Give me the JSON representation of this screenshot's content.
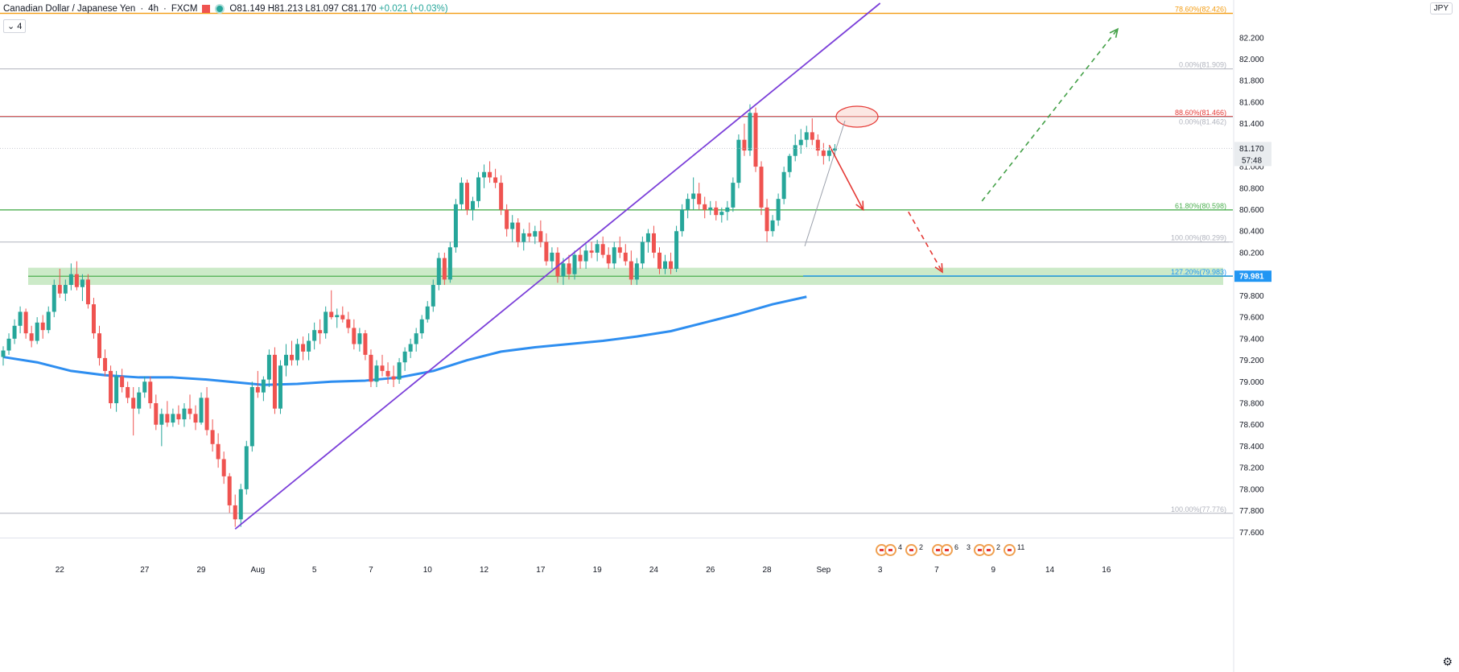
{
  "header": {
    "title": "Canadian Dollar / Japanese Yen",
    "interval": "4h",
    "source": "FXCM",
    "open": "O81.149",
    "high": "H81.213",
    "low": "L81.097",
    "close": "C81.170",
    "change": "+0.021 (+0.03%)",
    "indicator_value": "4",
    "currency": "JPY"
  },
  "events": [
    {
      "count": "4"
    },
    {
      "count": "2"
    },
    {
      "count": "6"
    },
    {
      "count": "3"
    },
    {
      "count": "2"
    },
    {
      "count": "11"
    }
  ],
  "colors": {
    "up": "#26a69a",
    "down": "#ef5350",
    "ma": "#2e8ef0",
    "trendline": "#7b3fd9",
    "resistance": "#e53935",
    "support_zone": "#b7e1b0",
    "level_green": "#4caf50",
    "fib_orange": "#f39c12",
    "fib_gray": "#b0b3bd",
    "blue_level": "#2196f3"
  },
  "chart_data": {
    "type": "candlestick",
    "title": "Canadian Dollar / Japanese Yen",
    "ylim": [
      77.55,
      82.55
    ],
    "y_ticks": [
      "82.200",
      "82.000",
      "81.800",
      "81.600",
      "81.400",
      "81.200",
      "81.000",
      "80.800",
      "80.600",
      "80.400",
      "80.200",
      "80.000",
      "79.800",
      "79.600",
      "79.400",
      "79.200",
      "79.000",
      "78.800",
      "78.600",
      "78.400",
      "78.200",
      "78.000",
      "77.800",
      "77.600"
    ],
    "x_ticks": [
      "22",
      "27",
      "29",
      "Aug",
      "5",
      "7",
      "10",
      "12",
      "17",
      "19",
      "24",
      "26",
      "28",
      "Sep",
      "3",
      "7",
      "9",
      "14",
      "16"
    ],
    "x_tick_positions": [
      4,
      10,
      14,
      18,
      22,
      26,
      30,
      34,
      38,
      42,
      46,
      50,
      54,
      58,
      62,
      66,
      70,
      74,
      78
    ],
    "last_price": "81.170",
    "countdown": "57:48",
    "candles": [
      [
        79.23,
        79.33,
        79.15,
        79.29
      ],
      [
        79.29,
        79.45,
        79.25,
        79.4
      ],
      [
        79.4,
        79.58,
        79.35,
        79.52
      ],
      [
        79.52,
        79.7,
        79.45,
        79.65
      ],
      [
        79.65,
        79.68,
        79.4,
        79.45
      ],
      [
        79.45,
        79.52,
        79.32,
        79.38
      ],
      [
        79.38,
        79.6,
        79.35,
        79.55
      ],
      [
        79.55,
        79.62,
        79.4,
        79.48
      ],
      [
        79.48,
        79.7,
        79.45,
        79.65
      ],
      [
        79.65,
        79.95,
        79.6,
        79.9
      ],
      [
        79.9,
        80.05,
        79.78,
        79.82
      ],
      [
        79.82,
        79.95,
        79.75,
        79.9
      ],
      [
        79.9,
        80.1,
        79.85,
        80.0
      ],
      [
        80.0,
        80.12,
        79.85,
        79.88
      ],
      [
        79.88,
        80.0,
        79.75,
        79.95
      ],
      [
        79.95,
        80.0,
        79.68,
        79.72
      ],
      [
        79.72,
        79.78,
        79.4,
        79.45
      ],
      [
        79.45,
        79.52,
        79.15,
        79.22
      ],
      [
        79.22,
        79.3,
        79.05,
        79.1
      ],
      [
        79.1,
        79.15,
        78.75,
        78.8
      ],
      [
        78.8,
        79.1,
        78.72,
        79.05
      ],
      [
        79.05,
        79.12,
        78.9,
        78.95
      ],
      [
        78.95,
        79.0,
        78.8,
        78.85
      ],
      [
        78.85,
        78.95,
        78.5,
        78.75
      ],
      [
        78.75,
        78.95,
        78.7,
        78.9
      ],
      [
        78.9,
        79.05,
        78.85,
        79.0
      ],
      [
        79.0,
        79.05,
        78.75,
        78.8
      ],
      [
        78.8,
        78.88,
        78.55,
        78.6
      ],
      [
        78.6,
        78.75,
        78.4,
        78.7
      ],
      [
        78.7,
        78.82,
        78.58,
        78.62
      ],
      [
        78.62,
        78.75,
        78.58,
        78.7
      ],
      [
        78.7,
        78.78,
        78.6,
        78.65
      ],
      [
        78.65,
        78.8,
        78.58,
        78.75
      ],
      [
        78.75,
        78.88,
        78.65,
        78.7
      ],
      [
        78.7,
        78.78,
        78.55,
        78.62
      ],
      [
        78.62,
        78.9,
        78.6,
        78.85
      ],
      [
        78.85,
        78.95,
        78.5,
        78.55
      ],
      [
        78.55,
        78.65,
        78.35,
        78.42
      ],
      [
        78.42,
        78.52,
        78.2,
        78.28
      ],
      [
        78.28,
        78.35,
        78.05,
        78.12
      ],
      [
        78.12,
        78.15,
        77.78,
        77.85
      ],
      [
        77.85,
        77.95,
        77.65,
        77.72
      ],
      [
        77.72,
        78.05,
        77.65,
        78.0
      ],
      [
        78.0,
        78.45,
        77.95,
        78.4
      ],
      [
        78.4,
        79.0,
        78.35,
        78.95
      ],
      [
        78.95,
        79.1,
        78.85,
        78.9
      ],
      [
        78.9,
        79.05,
        78.82,
        79.02
      ],
      [
        79.02,
        79.3,
        78.95,
        79.25
      ],
      [
        79.25,
        79.32,
        78.7,
        78.75
      ],
      [
        78.75,
        79.2,
        78.7,
        79.15
      ],
      [
        79.15,
        79.35,
        79.05,
        79.25
      ],
      [
        79.25,
        79.38,
        79.15,
        79.2
      ],
      [
        79.2,
        79.4,
        79.15,
        79.35
      ],
      [
        79.35,
        79.42,
        79.2,
        79.28
      ],
      [
        79.28,
        79.45,
        79.2,
        79.38
      ],
      [
        79.38,
        79.55,
        79.3,
        79.48
      ],
      [
        79.48,
        79.58,
        79.35,
        79.45
      ],
      [
        79.45,
        79.7,
        79.4,
        79.65
      ],
      [
        79.65,
        79.85,
        79.58,
        79.6
      ],
      [
        79.6,
        79.68,
        79.5,
        79.62
      ],
      [
        79.62,
        79.7,
        79.55,
        79.58
      ],
      [
        79.58,
        79.65,
        79.45,
        79.5
      ],
      [
        79.5,
        79.58,
        79.3,
        79.35
      ],
      [
        79.35,
        79.5,
        79.28,
        79.45
      ],
      [
        79.45,
        79.48,
        79.2,
        79.25
      ],
      [
        79.25,
        79.3,
        78.95,
        79.0
      ],
      [
        79.0,
        79.2,
        78.95,
        79.15
      ],
      [
        79.15,
        79.25,
        79.05,
        79.1
      ],
      [
        79.1,
        79.18,
        78.98,
        79.05
      ],
      [
        79.05,
        79.15,
        78.95,
        79.02
      ],
      [
        79.02,
        79.22,
        78.98,
        79.18
      ],
      [
        79.18,
        79.32,
        79.1,
        79.28
      ],
      [
        79.28,
        79.4,
        79.22,
        79.35
      ],
      [
        79.35,
        79.5,
        79.28,
        79.45
      ],
      [
        79.45,
        79.62,
        79.4,
        79.58
      ],
      [
        79.58,
        79.75,
        79.55,
        79.7
      ],
      [
        79.7,
        79.95,
        79.65,
        79.9
      ],
      [
        79.9,
        80.2,
        79.85,
        80.15
      ],
      [
        80.15,
        80.2,
        79.9,
        79.95
      ],
      [
        79.95,
        80.3,
        79.92,
        80.25
      ],
      [
        80.25,
        80.7,
        80.2,
        80.65
      ],
      [
        80.65,
        80.9,
        80.6,
        80.85
      ],
      [
        80.85,
        80.88,
        80.55,
        80.6
      ],
      [
        80.6,
        80.72,
        80.5,
        80.68
      ],
      [
        80.68,
        80.95,
        80.62,
        80.9
      ],
      [
        80.9,
        81.02,
        80.8,
        80.95
      ],
      [
        80.95,
        81.05,
        80.85,
        80.9
      ],
      [
        80.9,
        80.98,
        80.8,
        80.85
      ],
      [
        80.85,
        80.92,
        80.55,
        80.6
      ],
      [
        80.6,
        80.65,
        80.35,
        80.42
      ],
      [
        80.42,
        80.55,
        80.3,
        80.48
      ],
      [
        80.48,
        80.52,
        80.25,
        80.3
      ],
      [
        80.3,
        80.42,
        80.22,
        80.38
      ],
      [
        80.38,
        80.48,
        80.3,
        80.35
      ],
      [
        80.35,
        80.45,
        80.28,
        80.4
      ],
      [
        80.4,
        80.5,
        80.25,
        80.3
      ],
      [
        80.3,
        80.38,
        80.08,
        80.12
      ],
      [
        80.12,
        80.25,
        80.05,
        80.2
      ],
      [
        80.2,
        80.25,
        79.92,
        79.98
      ],
      [
        79.98,
        80.15,
        79.9,
        80.1
      ],
      [
        80.1,
        80.18,
        79.95,
        80.0
      ],
      [
        80.0,
        80.22,
        79.95,
        80.18
      ],
      [
        80.18,
        80.25,
        80.05,
        80.12
      ],
      [
        80.12,
        80.28,
        80.05,
        80.22
      ],
      [
        80.22,
        80.3,
        80.15,
        80.2
      ],
      [
        80.2,
        80.32,
        80.12,
        80.28
      ],
      [
        80.28,
        80.35,
        80.15,
        80.18
      ],
      [
        80.18,
        80.25,
        80.05,
        80.1
      ],
      [
        80.1,
        80.3,
        80.05,
        80.25
      ],
      [
        80.25,
        80.35,
        80.15,
        80.2
      ],
      [
        80.2,
        80.28,
        80.08,
        80.12
      ],
      [
        80.12,
        80.22,
        79.9,
        79.95
      ],
      [
        79.95,
        80.15,
        79.9,
        80.1
      ],
      [
        80.1,
        80.35,
        80.05,
        80.3
      ],
      [
        80.3,
        80.42,
        80.2,
        80.38
      ],
      [
        80.38,
        80.45,
        80.15,
        80.2
      ],
      [
        80.2,
        80.25,
        80.0,
        80.05
      ],
      [
        80.05,
        80.18,
        80.0,
        80.12
      ],
      [
        80.12,
        80.2,
        80.0,
        80.05
      ],
      [
        80.05,
        80.45,
        80.02,
        80.4
      ],
      [
        80.4,
        80.65,
        80.35,
        80.6
      ],
      [
        80.6,
        80.75,
        80.52,
        80.7
      ],
      [
        80.7,
        80.9,
        80.6,
        80.75
      ],
      [
        80.75,
        80.85,
        80.6,
        80.65
      ],
      [
        80.65,
        80.72,
        80.52,
        80.6
      ],
      [
        80.6,
        80.68,
        80.55,
        80.62
      ],
      [
        80.62,
        80.68,
        80.5,
        80.55
      ],
      [
        80.55,
        80.62,
        80.48,
        80.58
      ],
      [
        80.58,
        80.68,
        80.5,
        80.62
      ],
      [
        80.62,
        80.9,
        80.58,
        80.85
      ],
      [
        80.85,
        81.3,
        80.8,
        81.25
      ],
      [
        81.25,
        81.4,
        81.1,
        81.15
      ],
      [
        81.15,
        81.58,
        81.1,
        81.5
      ],
      [
        81.5,
        81.55,
        80.95,
        81.0
      ],
      [
        81.0,
        81.05,
        80.55,
        80.62
      ],
      [
        80.62,
        80.7,
        80.3,
        80.4
      ],
      [
        80.4,
        80.55,
        80.35,
        80.5
      ],
      [
        80.5,
        80.75,
        80.45,
        80.7
      ],
      [
        80.7,
        81.0,
        80.65,
        80.95
      ],
      [
        80.95,
        81.12,
        80.9,
        81.1
      ],
      [
        81.1,
        81.3,
        81.05,
        81.2
      ],
      [
        81.2,
        81.35,
        81.12,
        81.25
      ],
      [
        81.25,
        81.38,
        81.18,
        81.32
      ],
      [
        81.32,
        81.45,
        81.2,
        81.25
      ],
      [
        81.25,
        81.3,
        81.1,
        81.15
      ],
      [
        81.15,
        81.22,
        81.02,
        81.1
      ],
      [
        81.1,
        81.18,
        81.05,
        81.15
      ],
      [
        81.15,
        81.21,
        81.1,
        81.17
      ]
    ],
    "moving_average": [
      [
        0,
        79.23
      ],
      [
        6,
        79.18
      ],
      [
        12,
        79.1
      ],
      [
        18,
        79.06
      ],
      [
        24,
        79.04
      ],
      [
        30,
        79.04
      ],
      [
        36,
        79.02
      ],
      [
        42,
        78.99
      ],
      [
        46,
        78.97
      ],
      [
        52,
        78.98
      ],
      [
        58,
        79.0
      ],
      [
        64,
        79.01
      ],
      [
        70,
        79.04
      ],
      [
        76,
        79.1
      ],
      [
        82,
        79.2
      ],
      [
        88,
        79.28
      ],
      [
        94,
        79.32
      ],
      [
        100,
        79.35
      ],
      [
        106,
        79.38
      ],
      [
        112,
        79.42
      ],
      [
        118,
        79.47
      ],
      [
        124,
        79.55
      ],
      [
        130,
        79.63
      ],
      [
        136,
        79.72
      ],
      [
        142,
        79.79
      ]
    ],
    "levels": [
      {
        "label": "78.60%(82.426)",
        "value": 82.426,
        "color": "fib_orange"
      },
      {
        "label": "0.00%(81.909)",
        "value": 81.909,
        "color": "fib_gray"
      },
      {
        "label": "88.60%(81.466)",
        "value": 81.466,
        "color": "resistance"
      },
      {
        "label": "0.00%(81.462)",
        "value": 81.462,
        "color": "fib_gray"
      },
      {
        "label": "61.80%(80.598)",
        "value": 80.598,
        "color": "level_green"
      },
      {
        "label": "100.00%(80.299)",
        "value": 80.299,
        "color": "fib_gray"
      },
      {
        "label": "127.20%(79.983)",
        "value": 79.983,
        "color": "blue_level"
      },
      {
        "label": "100.00%(77.776)",
        "value": 77.776,
        "color": "fib_gray"
      }
    ],
    "support_zone": [
      79.9,
      80.06
    ],
    "support_line": 79.981,
    "blue_price_label": "79.981",
    "trendline": [
      [
        41,
        77.63
      ],
      [
        155,
        82.52
      ]
    ],
    "projection_down": [
      [
        146,
        81.2
      ],
      [
        152,
        80.6
      ]
    ],
    "projection_down_dashed": [
      [
        160,
        80.58
      ],
      [
        166,
        80.02
      ]
    ],
    "projection_up_dashed": [
      [
        173,
        80.68
      ],
      [
        197,
        82.28
      ]
    ]
  }
}
